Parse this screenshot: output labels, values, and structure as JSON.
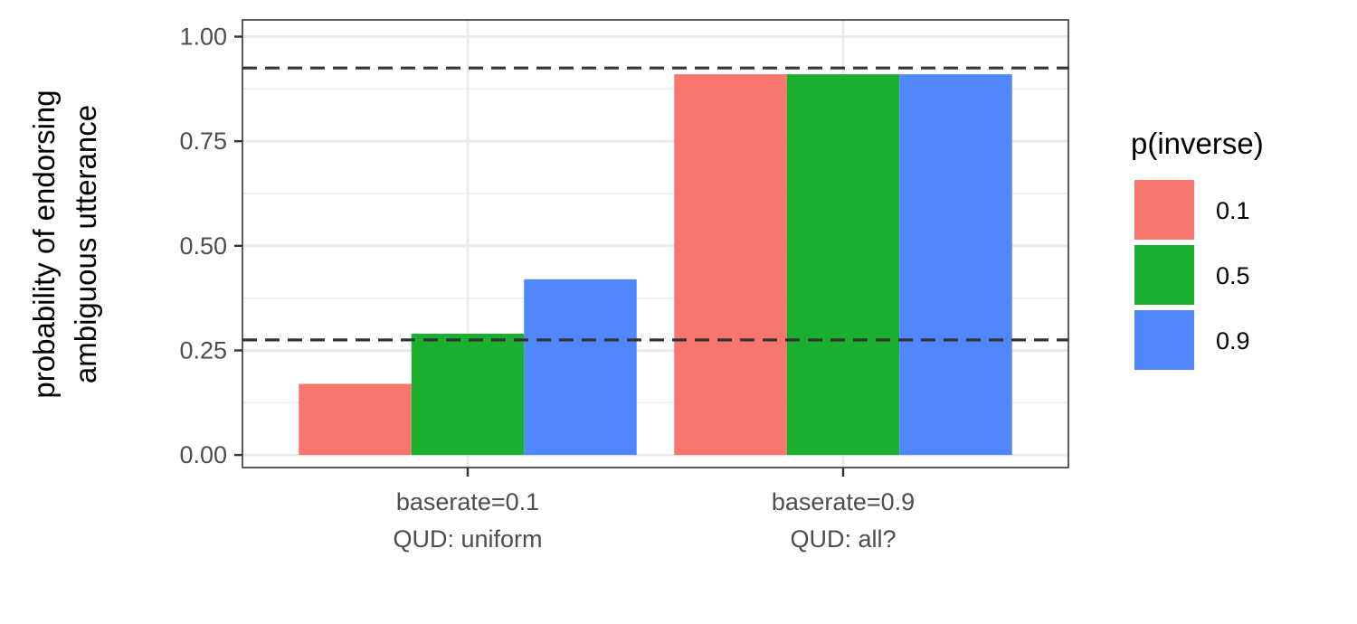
{
  "chart_data": {
    "type": "bar",
    "ylabel_lines": [
      "probability of endorsing",
      "ambiguous utterance"
    ],
    "xlabel": "",
    "ylim": [
      -0.03,
      1.04
    ],
    "yticks": [
      0.0,
      0.25,
      0.5,
      0.75,
      1.0
    ],
    "ytick_labels": [
      "0.00",
      "0.25",
      "0.50",
      "0.75",
      "1.00"
    ],
    "categories": [
      {
        "line1": "baserate=0.1",
        "line2": "QUD: uniform"
      },
      {
        "line1": "baserate=0.9",
        "line2": "QUD: all?"
      }
    ],
    "legend": {
      "title": "p(inverse)",
      "position": "right"
    },
    "series": [
      {
        "name": "0.1",
        "color": "#F8766D",
        "values": [
          0.17,
          0.91
        ]
      },
      {
        "name": "0.5",
        "color": "#1AAF2E",
        "values": [
          0.29,
          0.91
        ]
      },
      {
        "name": "0.9",
        "color": "#5087FF",
        "values": [
          0.42,
          0.91
        ]
      }
    ],
    "reference_lines": [
      0.925,
      0.275
    ],
    "grid": true
  }
}
